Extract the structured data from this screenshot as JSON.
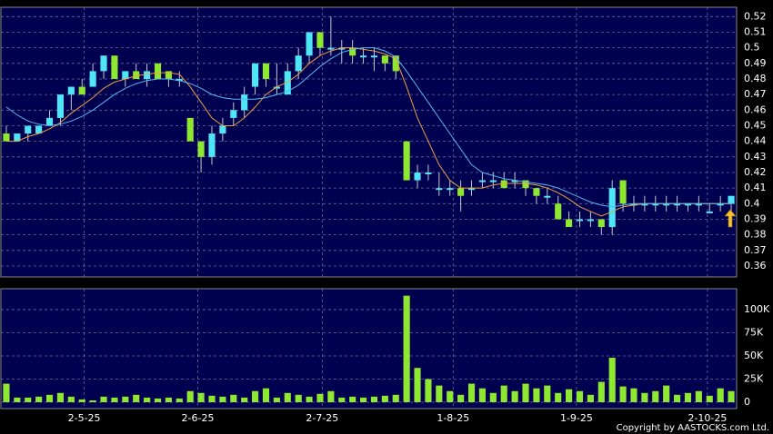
{
  "chart_data": {
    "type": "candlestick",
    "xlim": [
      -0.5,
      67.5
    ],
    "xticks": [
      {
        "value": 7.2,
        "label": "2-5-25"
      },
      {
        "value": 17.7,
        "label": "2-6-25"
      },
      {
        "value": 29.2,
        "label": "2-7-25"
      },
      {
        "value": 41.3,
        "label": "1-8-25"
      },
      {
        "value": 52.7,
        "label": "1-9-25"
      },
      {
        "value": 64.8,
        "label": "2-10-25"
      }
    ],
    "ylim": [
      0.353,
      0.526
    ],
    "yticks": [
      0.36,
      0.37,
      0.38,
      0.39,
      0.4,
      0.41,
      0.42,
      0.43,
      0.44,
      0.45,
      0.46,
      0.47,
      0.48,
      0.49,
      0.5,
      0.51,
      0.52
    ],
    "y2lim": [
      0,
      122500
    ],
    "y2ticks": [
      {
        "value": 0,
        "label": "0"
      },
      {
        "value": 25000,
        "label": "25K"
      },
      {
        "value": 50000,
        "label": "50K"
      },
      {
        "value": 75000,
        "label": "75K"
      },
      {
        "value": 100000,
        "label": "100K"
      }
    ],
    "up_color": "#4ee6f6",
    "down_color": "#8fe830",
    "volume_color": "#8fe830",
    "grid": true,
    "open": [
      0.445,
      0.44,
      0.445,
      0.445,
      0.45,
      0.455,
      0.47,
      0.475,
      0.475,
      0.485,
      0.495,
      0.48,
      0.485,
      0.48,
      0.49,
      0.485,
      0.48,
      0.455,
      0.44,
      0.43,
      0.445,
      0.455,
      0.46,
      0.475,
      0.49,
      0.475,
      0.47,
      0.485,
      0.495,
      0.51,
      0.5,
      0.5,
      0.5,
      0.495,
      0.495,
      0.495,
      0.495,
      0.44,
      0.415,
      0.42,
      0.41,
      0.41,
      0.41,
      0.41,
      0.415,
      0.415,
      0.415,
      0.415,
      0.415,
      0.41,
      0.405,
      0.4,
      0.39,
      0.39,
      0.39,
      0.39,
      0.385,
      0.415,
      0.4,
      0.4,
      0.4,
      0.4,
      0.4,
      0.4,
      0.4,
      0.395,
      0.4,
      0.4
    ],
    "high": [
      0.45,
      0.445,
      0.45,
      0.45,
      0.46,
      0.47,
      0.475,
      0.48,
      0.49,
      0.495,
      0.495,
      0.485,
      0.49,
      0.49,
      0.49,
      0.485,
      0.485,
      0.455,
      0.44,
      0.45,
      0.455,
      0.465,
      0.475,
      0.49,
      0.49,
      0.49,
      0.49,
      0.5,
      0.51,
      0.51,
      0.52,
      0.505,
      0.505,
      0.5,
      0.5,
      0.495,
      0.495,
      0.44,
      0.425,
      0.425,
      0.42,
      0.415,
      0.415,
      0.415,
      0.42,
      0.42,
      0.42,
      0.42,
      0.415,
      0.41,
      0.41,
      0.405,
      0.395,
      0.395,
      0.395,
      0.39,
      0.415,
      0.415,
      0.405,
      0.405,
      0.405,
      0.405,
      0.405,
      0.4,
      0.405,
      0.4,
      0.405,
      0.405
    ],
    "low": [
      0.44,
      0.44,
      0.44,
      0.445,
      0.45,
      0.45,
      0.46,
      0.47,
      0.475,
      0.48,
      0.48,
      0.475,
      0.48,
      0.475,
      0.48,
      0.475,
      0.475,
      0.44,
      0.42,
      0.425,
      0.44,
      0.45,
      0.455,
      0.47,
      0.475,
      0.47,
      0.47,
      0.48,
      0.49,
      0.495,
      0.495,
      0.49,
      0.49,
      0.49,
      0.485,
      0.485,
      0.48,
      0.415,
      0.41,
      0.415,
      0.405,
      0.405,
      0.395,
      0.405,
      0.41,
      0.41,
      0.41,
      0.41,
      0.405,
      0.4,
      0.4,
      0.39,
      0.385,
      0.385,
      0.385,
      0.38,
      0.38,
      0.395,
      0.395,
      0.395,
      0.395,
      0.395,
      0.395,
      0.395,
      0.395,
      0.395,
      0.395,
      0.395
    ],
    "close": [
      0.44,
      0.445,
      0.45,
      0.45,
      0.455,
      0.47,
      0.475,
      0.47,
      0.485,
      0.495,
      0.48,
      0.485,
      0.48,
      0.485,
      0.48,
      0.48,
      0.48,
      0.44,
      0.43,
      0.445,
      0.45,
      0.46,
      0.47,
      0.49,
      0.48,
      0.475,
      0.485,
      0.495,
      0.51,
      0.5,
      0.5,
      0.5,
      0.495,
      0.495,
      0.495,
      0.49,
      0.485,
      0.415,
      0.42,
      0.42,
      0.41,
      0.41,
      0.405,
      0.41,
      0.415,
      0.415,
      0.41,
      0.415,
      0.41,
      0.405,
      0.405,
      0.39,
      0.385,
      0.39,
      0.39,
      0.385,
      0.41,
      0.4,
      0.4,
      0.4,
      0.4,
      0.4,
      0.4,
      0.4,
      0.4,
      0.395,
      0.4,
      0.405
    ],
    "volume": [
      20000,
      5000,
      5000,
      6000,
      8000,
      10000,
      6000,
      3000,
      2000,
      6000,
      5000,
      6000,
      8000,
      5000,
      4000,
      5000,
      4000,
      12000,
      10000,
      7000,
      6000,
      8000,
      5000,
      12000,
      15000,
      5000,
      10000,
      8000,
      6000,
      9000,
      12000,
      5000,
      6000,
      5000,
      6000,
      7000,
      8000,
      115000,
      37000,
      25000,
      18000,
      12000,
      8000,
      20000,
      15000,
      10000,
      18000,
      12000,
      20000,
      15000,
      18000,
      10000,
      14000,
      12000,
      8000,
      22000,
      48000,
      17000,
      15000,
      10000,
      12000,
      18000,
      8000,
      10000,
      12000,
      7000,
      15000,
      12000
    ],
    "ma_series": [
      {
        "color": "#f0a040",
        "values": [
          0.44,
          0.44,
          0.443,
          0.445,
          0.448,
          0.452,
          0.458,
          0.463,
          0.468,
          0.474,
          0.478,
          0.48,
          0.482,
          0.483,
          0.484,
          0.484,
          0.483,
          0.475,
          0.465,
          0.455,
          0.45,
          0.45,
          0.455,
          0.462,
          0.47,
          0.475,
          0.478,
          0.483,
          0.49,
          0.495,
          0.498,
          0.5,
          0.5,
          0.499,
          0.498,
          0.496,
          0.493,
          0.475,
          0.455,
          0.44,
          0.425,
          0.415,
          0.41,
          0.41,
          0.41,
          0.412,
          0.413,
          0.413,
          0.413,
          0.412,
          0.41,
          0.407,
          0.403,
          0.398,
          0.395,
          0.392,
          0.395,
          0.398,
          0.399,
          0.4,
          0.4,
          0.4,
          0.4,
          0.4,
          0.4,
          0.4,
          0.4,
          0.4
        ]
      },
      {
        "color": "#58b8f0",
        "values": [
          0.462,
          0.457,
          0.453,
          0.451,
          0.45,
          0.451,
          0.453,
          0.456,
          0.46,
          0.465,
          0.47,
          0.474,
          0.477,
          0.479,
          0.48,
          0.48,
          0.479,
          0.477,
          0.474,
          0.47,
          0.468,
          0.467,
          0.467,
          0.467,
          0.468,
          0.47,
          0.472,
          0.476,
          0.482,
          0.488,
          0.493,
          0.497,
          0.499,
          0.5,
          0.5,
          0.498,
          0.494,
          0.485,
          0.475,
          0.465,
          0.455,
          0.445,
          0.435,
          0.425,
          0.42,
          0.418,
          0.416,
          0.415,
          0.414,
          0.413,
          0.412,
          0.41,
          0.407,
          0.404,
          0.401,
          0.399,
          0.398,
          0.399,
          0.4,
          0.4,
          0.4,
          0.4,
          0.4,
          0.4,
          0.4,
          0.4,
          0.4,
          0.4
        ]
      }
    ],
    "copyright": "Copyright by AASTOCKS.com Ltd."
  }
}
